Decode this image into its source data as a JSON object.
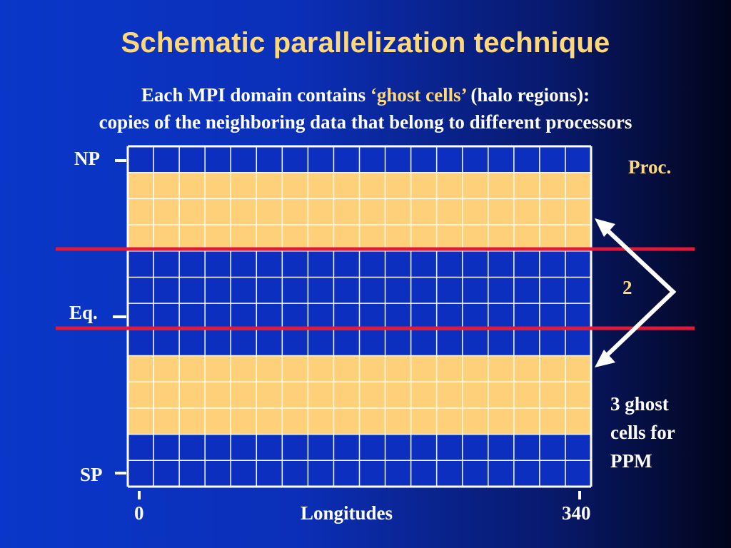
{
  "title": "Schematic parallelization technique",
  "subtitle": {
    "line1_prefix": "Each MPI domain contains ",
    "line1_highlight": "‘ghost cells’",
    "line1_suffix": " (halo regions):",
    "line2": "copies of the neighboring data that belong to different processors"
  },
  "labels": {
    "np": "NP",
    "eq": "Eq.",
    "sp": "SP",
    "x_left": "0",
    "x_center": "Longitudes",
    "x_right": "340",
    "proc": "Proc.",
    "proc_number": "2",
    "ghost_note_lines": [
      "3 ghost",
      "cells for",
      "PPM"
    ]
  },
  "grid": {
    "columns": 18,
    "rows": 13,
    "row_fill": [
      "blue",
      "gold",
      "gold",
      "gold",
      "blue",
      "blue",
      "blue",
      "blue",
      "gold",
      "gold",
      "gold",
      "blue",
      "blue"
    ],
    "colors": {
      "blue": "#0d2fc0",
      "gold": "#ffd07a",
      "grid_line": "#ffffff",
      "domain_line": "#e0193a",
      "background_gradient": [
        "#0a37c9",
        "#02041a"
      ]
    }
  }
}
